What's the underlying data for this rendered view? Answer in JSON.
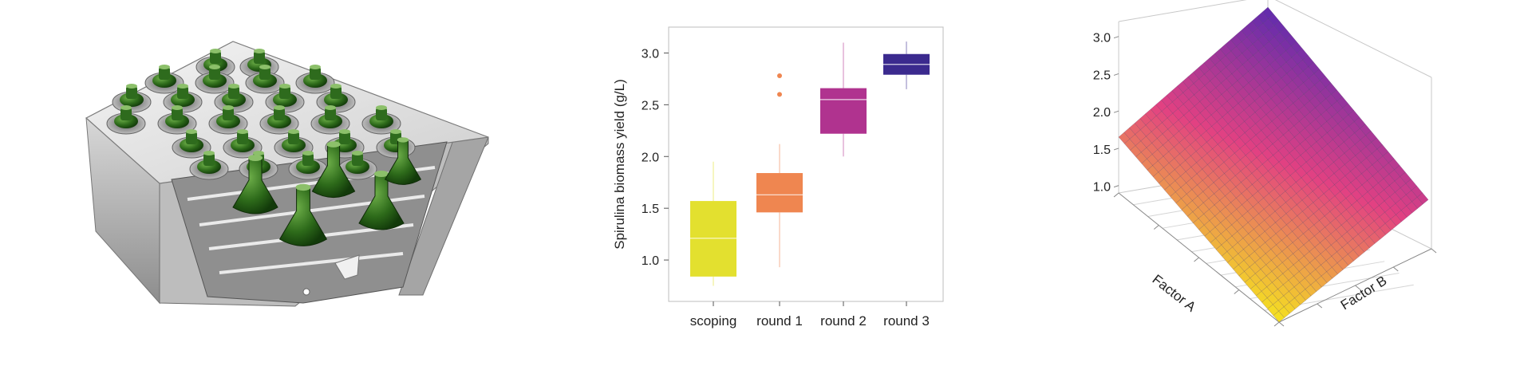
{
  "colors": {
    "scoping": "#e3e02f",
    "round1": "#ef8650",
    "round2": "#b0338f",
    "round3": "#3b2a8e",
    "surface_low": "#f5e31f",
    "surface_high": "#5a2ab0"
  },
  "chart_data": [
    {
      "type": "box",
      "ylabel": "Spirulina biomass yield (g/L)",
      "xlabel": "",
      "ylim": [
        0.6,
        3.25
      ],
      "yticks": [
        "1.0",
        "1.5",
        "2.0",
        "2.5",
        "3.0"
      ],
      "yticks_values": [
        1.0,
        1.5,
        2.0,
        2.5,
        3.0
      ],
      "grid": false,
      "categories": [
        "scoping",
        "round 1",
        "round 2",
        "round 3"
      ],
      "boxes": [
        {
          "name": "scoping",
          "whisker_low": 0.75,
          "q1": 0.84,
          "median": 1.21,
          "q3": 1.57,
          "whisker_high": 1.95,
          "outliers": []
        },
        {
          "name": "round 1",
          "whisker_low": 0.93,
          "q1": 1.46,
          "median": 1.63,
          "q3": 1.84,
          "whisker_high": 2.12,
          "outliers": [
            2.6,
            2.78
          ]
        },
        {
          "name": "round 2",
          "whisker_low": 2.0,
          "q1": 2.22,
          "median": 2.55,
          "q3": 2.66,
          "whisker_high": 3.1,
          "outliers": []
        },
        {
          "name": "round 3",
          "whisker_low": 2.65,
          "q1": 2.79,
          "median": 2.89,
          "q3": 2.99,
          "whisker_high": 3.11,
          "outliers": []
        }
      ]
    },
    {
      "type": "surface",
      "xlabel": "Factor A",
      "ylabel": "Factor B",
      "zlabel": "",
      "zlim": [
        0.9,
        3.2
      ],
      "zticks": [
        "1.0",
        "1.5",
        "2.0",
        "2.5",
        "3.0"
      ],
      "zticks_values": [
        1.0,
        1.5,
        2.0,
        2.5,
        3.0
      ],
      "corners": {
        "a_min_b_min": 0.9,
        "a_max_b_min": 1.65,
        "a_min_b_max": 2.2,
        "a_max_b_max": 3.05
      }
    }
  ],
  "device": {
    "description_icon": "culture-flask-rack-icon"
  }
}
